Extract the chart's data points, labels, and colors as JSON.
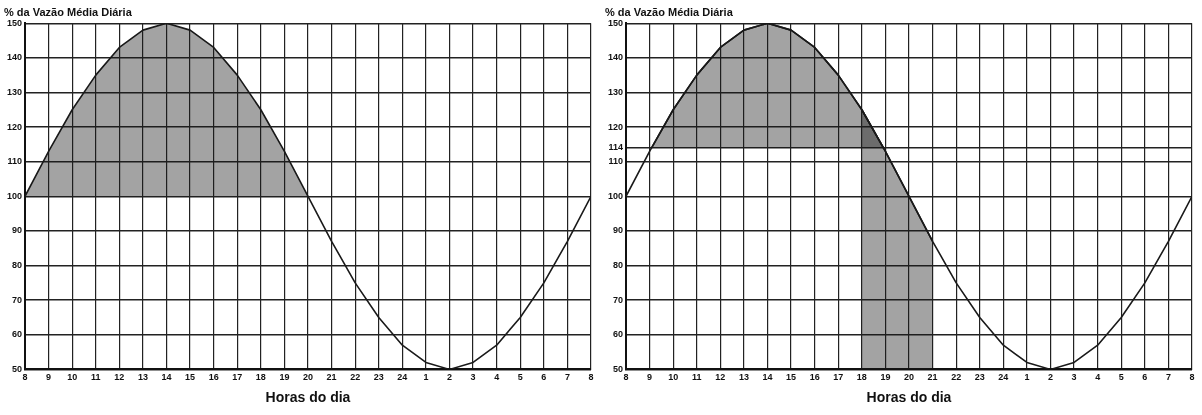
{
  "chart_data": [
    {
      "type": "line",
      "title": "% da Vazão Média Diária",
      "xlabel": "Horas do dia",
      "grid": true,
      "legend": false,
      "xlim": [
        "--01-01T08:00",
        "--01-02T08:00"
      ],
      "xticks": [
        {
          "value": "--01-01T08:00",
          "label": "8"
        },
        {
          "value": "--01-01T09:00",
          "label": "9"
        },
        {
          "value": "--01-01T10:00",
          "label": "10"
        },
        {
          "value": "--01-01T11:00",
          "label": "11"
        },
        {
          "value": "--01-01T12:00",
          "label": "12"
        },
        {
          "value": "--01-01T13:00",
          "label": "13"
        },
        {
          "value": "--01-01T14:00",
          "label": "14"
        },
        {
          "value": "--01-01T15:00",
          "label": "15"
        },
        {
          "value": "--01-01T16:00",
          "label": "16"
        },
        {
          "value": "--01-01T17:00",
          "label": "17"
        },
        {
          "value": "--01-01T18:00",
          "label": "18"
        },
        {
          "value": "--01-01T19:00",
          "label": "19"
        },
        {
          "value": "--01-01T20:00",
          "label": "20"
        },
        {
          "value": "--01-01T21:00",
          "label": "21"
        },
        {
          "value": "--01-01T22:00",
          "label": "22"
        },
        {
          "value": "--01-01T23:00",
          "label": "23"
        },
        {
          "value": "--01-02T00:00",
          "label": "24"
        },
        {
          "value": "--01-02T01:00",
          "label": "1"
        },
        {
          "value": "--01-02T02:00",
          "label": "2"
        },
        {
          "value": "--01-02T03:00",
          "label": "3"
        },
        {
          "value": "--01-02T04:00",
          "label": "4"
        },
        {
          "value": "--01-02T05:00",
          "label": "5"
        },
        {
          "value": "--01-02T06:00",
          "label": "6"
        },
        {
          "value": "--01-02T07:00",
          "label": "7"
        },
        {
          "value": "--01-02T08:00",
          "label": "8"
        }
      ],
      "ylim": [
        50,
        150
      ],
      "yticks": [
        50,
        60,
        70,
        80,
        90,
        100,
        110,
        120,
        130,
        140,
        150
      ],
      "series": [
        {
          "type": "line",
          "color": "#1a1a1a",
          "x": [
            "--01-01T08:00",
            "--01-01T09:00",
            "--01-01T10:00",
            "--01-01T11:00",
            "--01-01T12:00",
            "--01-01T13:00",
            "--01-01T14:00",
            "--01-01T15:00",
            "--01-01T16:00",
            "--01-01T17:00",
            "--01-01T18:00",
            "--01-01T19:00",
            "--01-01T20:00",
            "--01-01T21:00",
            "--01-01T22:00",
            "--01-01T23:00",
            "--01-02T00:00",
            "--01-02T01:00",
            "--01-02T02:00",
            "--01-02T03:00",
            "--01-02T04:00",
            "--01-02T05:00",
            "--01-02T06:00",
            "--01-02T07:00",
            "--01-02T08:00"
          ],
          "values": [
            100,
            113,
            125,
            135,
            143,
            148,
            150,
            148,
            143,
            135,
            125,
            113,
            100,
            87,
            75,
            65,
            57,
            52,
            50,
            52,
            57,
            65,
            75,
            87,
            100
          ],
          "lower": [
            100,
            100,
            100,
            100,
            100,
            100,
            100,
            100,
            100,
            100,
            100,
            100,
            100,
            null,
            null,
            null,
            null,
            null,
            null,
            null,
            null,
            null,
            null,
            null,
            null
          ],
          "upper": [
            100,
            113,
            125,
            135,
            143,
            148,
            150,
            148,
            143,
            135,
            125,
            113,
            100,
            null,
            null,
            null,
            null,
            null,
            null,
            null,
            null,
            null,
            null,
            null,
            null
          ]
        }
      ]
    },
    {
      "type": "line",
      "title": "% da Vazão Média Diária",
      "xlabel": "Horas do dia",
      "grid": true,
      "legend": false,
      "xlim": [
        "--01-01T08:00",
        "--01-02T08:00"
      ],
      "xticks": [
        {
          "value": "--01-01T08:00",
          "label": "8"
        },
        {
          "value": "--01-01T09:00",
          "label": "9"
        },
        {
          "value": "--01-01T10:00",
          "label": "10"
        },
        {
          "value": "--01-01T11:00",
          "label": "11"
        },
        {
          "value": "--01-01T12:00",
          "label": "12"
        },
        {
          "value": "--01-01T13:00",
          "label": "13"
        },
        {
          "value": "--01-01T14:00",
          "label": "14"
        },
        {
          "value": "--01-01T15:00",
          "label": "15"
        },
        {
          "value": "--01-01T16:00",
          "label": "16"
        },
        {
          "value": "--01-01T17:00",
          "label": "17"
        },
        {
          "value": "--01-01T18:00",
          "label": "18"
        },
        {
          "value": "--01-01T19:00",
          "label": "19"
        },
        {
          "value": "--01-01T20:00",
          "label": "20"
        },
        {
          "value": "--01-01T21:00",
          "label": "21"
        },
        {
          "value": "--01-01T22:00",
          "label": "22"
        },
        {
          "value": "--01-01T23:00",
          "label": "23"
        },
        {
          "value": "--01-02T00:00",
          "label": "24"
        },
        {
          "value": "--01-02T01:00",
          "label": "1"
        },
        {
          "value": "--01-02T02:00",
          "label": "2"
        },
        {
          "value": "--01-02T03:00",
          "label": "3"
        },
        {
          "value": "--01-02T04:00",
          "label": "4"
        },
        {
          "value": "--01-02T05:00",
          "label": "5"
        },
        {
          "value": "--01-02T06:00",
          "label": "6"
        },
        {
          "value": "--01-02T07:00",
          "label": "7"
        },
        {
          "value": "--01-02T08:00",
          "label": "8"
        }
      ],
      "ylim": [
        50,
        150
      ],
      "yticks": [
        50,
        60,
        70,
        80,
        90,
        100,
        110,
        114,
        120,
        130,
        140,
        150
      ],
      "series": [
        {
          "type": "line",
          "color": "#1a1a1a",
          "x": [
            "--01-01T09:05",
            "--01-01T10:00",
            "--01-01T11:00",
            "--01-01T12:00",
            "--01-01T13:00",
            "--01-01T14:00",
            "--01-01T15:00",
            "--01-01T16:00",
            "--01-01T17:00",
            "--01-01T18:00",
            "--01-01T18:55"
          ],
          "values": [
            114,
            125,
            135,
            143,
            148,
            150,
            148,
            143,
            135,
            125,
            114
          ],
          "lower": [
            114,
            114,
            114,
            114,
            114,
            114,
            114,
            114,
            114,
            114,
            114
          ],
          "upper": [
            114,
            125,
            135,
            143,
            148,
            150,
            148,
            143,
            135,
            125,
            114
          ]
        },
        {
          "type": "line",
          "color": "#1a1a1a",
          "x": [
            "--01-01T18:00",
            "--01-01T19:00",
            "--01-01T20:00",
            "--01-01T21:00"
          ],
          "values": [
            125,
            113,
            100,
            87
          ],
          "lower": [
            50,
            50,
            50,
            50
          ],
          "upper": [
            125,
            113,
            100,
            87
          ]
        },
        {
          "type": "line",
          "color": "#1a1a1a",
          "x": [
            "--01-01T08:00",
            "--01-01T09:00",
            "--01-01T10:00",
            "--01-01T11:00",
            "--01-01T12:00",
            "--01-01T13:00",
            "--01-01T14:00",
            "--01-01T15:00",
            "--01-01T16:00",
            "--01-01T17:00",
            "--01-01T18:00",
            "--01-01T19:00",
            "--01-01T20:00",
            "--01-01T21:00",
            "--01-01T22:00",
            "--01-01T23:00",
            "--01-02T00:00",
            "--01-02T01:00",
            "--01-02T02:00",
            "--01-02T03:00",
            "--01-02T04:00",
            "--01-02T05:00",
            "--01-02T06:00",
            "--01-02T07:00",
            "--01-02T08:00"
          ],
          "values": [
            100,
            113,
            125,
            135,
            143,
            148,
            150,
            148,
            143,
            135,
            125,
            113,
            100,
            87,
            75,
            65,
            57,
            52,
            50,
            52,
            57,
            65,
            75,
            87,
            100
          ]
        }
      ]
    }
  ]
}
